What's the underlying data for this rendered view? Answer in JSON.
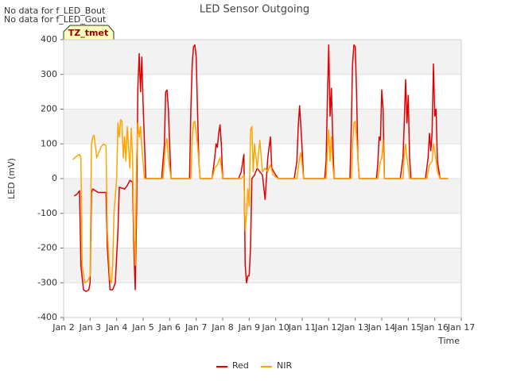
{
  "notes": [
    "No data for f_LED_Bout",
    "No data for f_LED_Gout"
  ],
  "chart_data": {
    "type": "line",
    "title": "LED Sensor Outgoing",
    "y_label": "LED (mV)",
    "x_label": "Time",
    "badge": "TZ_tmet",
    "xlim": [
      2,
      17
    ],
    "xticks": [
      {
        "value": 2,
        "label": "Jan 2"
      },
      {
        "value": 3,
        "label": "Jan 3"
      },
      {
        "value": 4,
        "label": "Jan 4"
      },
      {
        "value": 5,
        "label": "Jan 5"
      },
      {
        "value": 6,
        "label": "Jan 6"
      },
      {
        "value": 7,
        "label": "Jan 7"
      },
      {
        "value": 8,
        "label": "Jan 8"
      },
      {
        "value": 9,
        "label": "Jan 9"
      },
      {
        "value": 10,
        "label": "Jan 10"
      },
      {
        "value": 11,
        "label": "Jan 11"
      },
      {
        "value": 12,
        "label": "Jan 12"
      },
      {
        "value": 13,
        "label": "Jan 13"
      },
      {
        "value": 14,
        "label": "Jan 14"
      },
      {
        "value": 15,
        "label": "Jan 15"
      },
      {
        "value": 16,
        "label": "Jan 16"
      },
      {
        "value": 17,
        "label": "Jan 17"
      }
    ],
    "ylim": [
      -400,
      400
    ],
    "yticks": [
      -400,
      -300,
      -200,
      -100,
      0,
      100,
      200,
      300,
      400
    ],
    "grid": true,
    "series": [
      {
        "name": "Red",
        "color": "#e00000",
        "x": [
          2.4,
          2.5,
          2.6,
          2.65,
          2.75,
          2.85,
          2.95,
          3.0,
          3.05,
          3.1,
          3.3,
          3.6,
          3.65,
          3.75,
          3.85,
          3.95,
          4.05,
          4.1,
          4.3,
          4.4,
          4.5,
          4.6,
          4.65,
          4.7,
          4.75,
          4.8,
          4.85,
          4.9,
          4.95,
          5.0,
          5.05,
          5.1,
          5.7,
          5.8,
          5.85,
          5.9,
          5.95,
          6.0,
          6.05,
          6.75,
          6.8,
          6.85,
          6.9,
          6.95,
          7.0,
          7.05,
          7.1,
          7.15,
          7.6,
          7.7,
          7.75,
          7.8,
          7.85,
          7.9,
          7.95,
          8.0,
          8.6,
          8.7,
          8.8,
          8.85,
          8.9,
          8.95,
          9.0,
          9.05,
          9.1,
          9.2,
          9.3,
          9.4,
          9.5,
          9.6,
          9.7,
          9.8,
          9.85,
          10.0,
          10.1,
          10.7,
          10.8,
          10.85,
          10.9,
          10.95,
          11.0,
          11.05,
          11.85,
          11.9,
          11.95,
          12.0,
          12.05,
          12.1,
          12.15,
          12.2,
          12.8,
          12.85,
          12.9,
          12.95,
          13.0,
          13.05,
          13.1,
          13.15,
          13.8,
          13.85,
          13.9,
          13.95,
          14.0,
          14.05,
          14.1,
          14.7,
          14.8,
          14.85,
          14.9,
          14.95,
          15.0,
          15.05,
          15.1,
          15.65,
          15.75,
          15.8,
          15.85,
          15.9,
          15.95,
          16.0,
          16.05,
          16.1,
          16.2,
          16.5
        ],
        "values": [
          -50,
          -45,
          -35,
          -250,
          -320,
          -325,
          -320,
          -300,
          -40,
          -30,
          -40,
          -40,
          -200,
          -320,
          -320,
          -300,
          -150,
          -25,
          -30,
          -20,
          -5,
          -10,
          -200,
          -320,
          -100,
          260,
          360,
          250,
          350,
          210,
          100,
          0,
          0,
          100,
          250,
          255,
          200,
          100,
          0,
          0,
          200,
          330,
          380,
          385,
          350,
          200,
          50,
          0,
          0,
          60,
          100,
          90,
          130,
          155,
          100,
          0,
          0,
          20,
          70,
          -250,
          -300,
          -280,
          -280,
          -200,
          0,
          10,
          30,
          20,
          10,
          -60,
          60,
          120,
          30,
          10,
          0,
          0,
          50,
          150,
          210,
          150,
          80,
          0,
          0,
          50,
          230,
          385,
          180,
          260,
          120,
          0,
          0,
          150,
          330,
          385,
          380,
          250,
          60,
          0,
          0,
          40,
          120,
          110,
          255,
          200,
          0,
          0,
          60,
          160,
          285,
          160,
          240,
          60,
          0,
          0,
          60,
          130,
          80,
          130,
          330,
          180,
          200,
          50,
          0,
          0
        ]
      },
      {
        "name": "NIR",
        "color": "#ffa500",
        "x": [
          2.35,
          2.5,
          2.6,
          2.65,
          2.7,
          2.8,
          2.9,
          3.0,
          3.05,
          3.1,
          3.15,
          3.25,
          3.3,
          3.4,
          3.5,
          3.6,
          3.65,
          3.75,
          3.8,
          3.85,
          3.9,
          4.0,
          4.05,
          4.1,
          4.15,
          4.2,
          4.25,
          4.3,
          4.35,
          4.4,
          4.5,
          4.55,
          4.6,
          4.65,
          4.7,
          4.75,
          4.8,
          4.85,
          4.9,
          4.95,
          5.05,
          5.75,
          5.85,
          5.9,
          5.95,
          6.05,
          6.8,
          6.85,
          6.9,
          6.95,
          7.05,
          7.15,
          7.6,
          7.7,
          7.8,
          7.9,
          8.0,
          8.7,
          8.8,
          8.85,
          8.9,
          8.95,
          9.0,
          9.05,
          9.1,
          9.15,
          9.2,
          9.3,
          9.4,
          9.5,
          9.6,
          9.7,
          9.8,
          9.9,
          10.1,
          10.8,
          10.9,
          10.95,
          11.05,
          11.9,
          11.95,
          12.0,
          12.05,
          12.1,
          12.15,
          12.2,
          12.85,
          12.9,
          12.95,
          13.0,
          13.05,
          13.15,
          13.85,
          13.95,
          14.0,
          14.05,
          14.1,
          14.8,
          14.85,
          14.9,
          14.95,
          15.05,
          15.7,
          15.8,
          15.9,
          15.95,
          16.0,
          16.1,
          16.2,
          16.5
        ],
        "values": [
          55,
          65,
          70,
          60,
          -250,
          -300,
          -295,
          -280,
          100,
          120,
          125,
          60,
          70,
          90,
          100,
          95,
          -150,
          -290,
          -300,
          -250,
          -100,
          0,
          160,
          120,
          170,
          165,
          60,
          120,
          50,
          150,
          30,
          145,
          60,
          -150,
          -250,
          50,
          160,
          120,
          150,
          90,
          0,
          0,
          100,
          115,
          60,
          0,
          0,
          120,
          160,
          165,
          100,
          0,
          0,
          30,
          40,
          60,
          0,
          0,
          10,
          -150,
          -100,
          -30,
          -80,
          140,
          150,
          20,
          100,
          30,
          110,
          20,
          30,
          20,
          40,
          10,
          0,
          0,
          60,
          75,
          0,
          0,
          80,
          140,
          50,
          120,
          40,
          0,
          0,
          100,
          160,
          165,
          120,
          0,
          0,
          50,
          60,
          110,
          0,
          0,
          70,
          100,
          60,
          0,
          0,
          40,
          50,
          100,
          80,
          20,
          0,
          0
        ]
      }
    ]
  }
}
